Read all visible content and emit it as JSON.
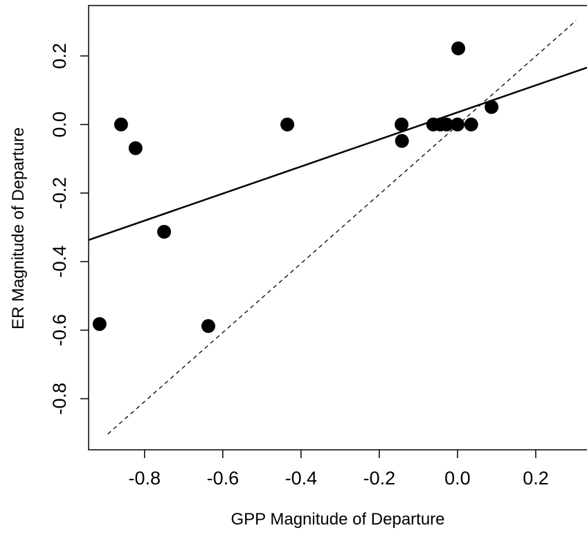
{
  "chart_data": {
    "type": "scatter",
    "x_label": "GPP Magnitude of Departure",
    "y_label": "ER Magnitude of Departure",
    "x": [
      -0.915,
      -0.86,
      -0.823,
      -0.75,
      -0.637,
      -0.435,
      -0.143,
      -0.142,
      -0.062,
      -0.044,
      -0.028,
      0.0,
      0.002,
      0.035,
      0.087
    ],
    "values": [
      -0.582,
      0.0,
      -0.069,
      -0.313,
      -0.588,
      0.0,
      0.0,
      -0.048,
      0.0,
      0.0,
      0.0,
      0.0,
      0.222,
      0.0,
      0.051
    ],
    "color": "#000000",
    "fit_line": {
      "x": [
        -0.943,
        0.331
      ],
      "y": [
        -0.337,
        0.166
      ]
    },
    "identity_line": {
      "x": [
        -0.894,
        0.303
      ],
      "y": [
        -0.903,
        0.303
      ]
    },
    "xlim": [
      -0.943,
      0.331
    ],
    "ylim": [
      -0.949,
      0.347
    ],
    "xticks": [
      -0.8,
      -0.6,
      -0.4,
      -0.2,
      {
        "value": 0,
        "label": "0.0"
      },
      0.2
    ],
    "yticks": [
      -0.8,
      -0.6,
      -0.4,
      -0.2,
      {
        "value": 0,
        "label": "0.0"
      },
      0.2
    ],
    "grid": false
  }
}
